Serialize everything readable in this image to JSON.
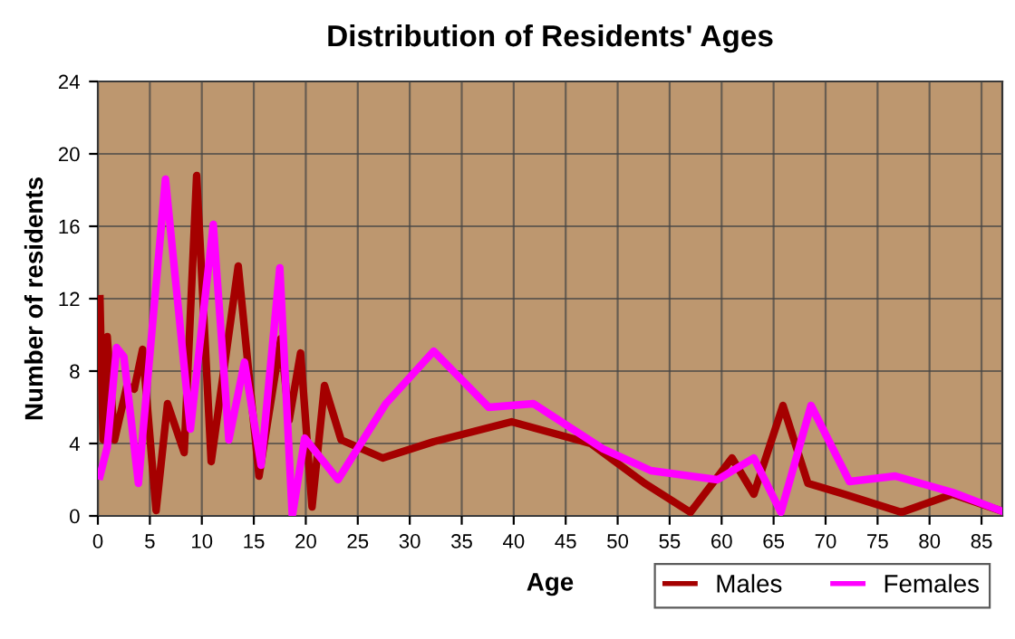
{
  "chart_data": {
    "type": "line",
    "title": "Distribution of Residents' Ages",
    "xlabel": "Age",
    "ylabel": "Number of residents",
    "xlim": [
      0,
      87
    ],
    "xticks": [
      0,
      5,
      10,
      15,
      20,
      25,
      30,
      35,
      40,
      45,
      50,
      55,
      60,
      65,
      70,
      75,
      80,
      85
    ],
    "ylim": [
      0,
      24
    ],
    "yticks": [
      0,
      4,
      8,
      12,
      16,
      20,
      24
    ],
    "grid": true,
    "legend": "bottom right",
    "line_style": "solid",
    "series": [
      {
        "name": "Males",
        "color": "#a50000",
        "x": [
          0.2,
          0.5,
          0.9,
          1.6,
          2.8,
          3.5,
          4.3,
          5.6,
          6.7,
          8.3,
          9.5,
          10.9,
          13.5,
          15.5,
          17.6,
          18.4,
          19.5,
          20.6,
          21.8,
          23.4,
          27.4,
          32.3,
          39.8,
          47.4,
          52.6,
          57.0,
          61.0,
          63.1,
          65.9,
          68.3,
          71.8,
          77.3,
          82.2,
          86.8
        ],
        "values": [
          12.0,
          4.2,
          9.9,
          4.2,
          7.2,
          7.0,
          9.2,
          0.3,
          6.2,
          3.5,
          18.8,
          3.0,
          13.8,
          2.2,
          9.8,
          5.3,
          9.0,
          0.5,
          7.2,
          4.2,
          3.2,
          4.1,
          5.2,
          4.0,
          1.8,
          0.2,
          3.2,
          1.2,
          6.1,
          1.8,
          1.2,
          0.2,
          1.2,
          0.3
        ]
      },
      {
        "name": "Females",
        "color": "#ff00ff",
        "x": [
          0.2,
          0.9,
          1.8,
          2.5,
          3.9,
          6.5,
          8.9,
          11.1,
          12.6,
          14.1,
          15.7,
          17.5,
          18.7,
          19.9,
          23.1,
          27.7,
          32.3,
          37.6,
          41.9,
          48.6,
          53.2,
          59.6,
          63.1,
          65.7,
          68.6,
          72.3,
          76.7,
          82.2,
          86.8
        ],
        "values": [
          2.2,
          3.8,
          9.3,
          8.8,
          1.8,
          18.6,
          4.8,
          16.1,
          4.2,
          8.5,
          2.8,
          13.7,
          0.0,
          4.3,
          2.0,
          6.2,
          9.1,
          6.0,
          6.2,
          3.7,
          2.5,
          2.0,
          3.2,
          0.2,
          6.1,
          1.9,
          2.2,
          1.3,
          0.3
        ]
      }
    ]
  }
}
